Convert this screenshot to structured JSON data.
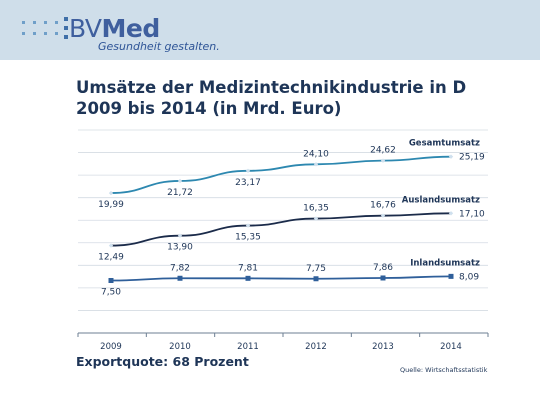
{
  "header": {
    "logo_main": "BV",
    "logo_bold": "Med",
    "tagline": "Gesundheit gestalten."
  },
  "title_line1": "Umsätze der Medizintechnikindustrie in D",
  "title_line2": "2009 bis 2014 (in Mrd. Euro)",
  "note": "Exportquote: 68 Prozent",
  "source": "Quelle: Wirtschaftsstatistik",
  "chart_data": {
    "type": "line",
    "x": [
      "2009",
      "2010",
      "2011",
      "2012",
      "2013",
      "2014"
    ],
    "ylim": [
      0,
      29
    ],
    "grid": true,
    "series": [
      {
        "name": "Gesamtumsatz",
        "values": [
          19.99,
          21.72,
          23.17,
          24.1,
          24.62,
          25.19
        ],
        "labels": [
          "19,99",
          "21,72",
          "23,17",
          "24,10",
          "24,62",
          "25,19"
        ],
        "color": "#2d88b0",
        "marker": "diamond"
      },
      {
        "name": "Auslandsumsatz",
        "values": [
          12.49,
          13.9,
          15.35,
          16.35,
          16.76,
          17.1
        ],
        "labels": [
          "12,49",
          "13,90",
          "15,35",
          "16,35",
          "16,76",
          "17,10"
        ],
        "color": "#1b2b4a",
        "marker": "diamond"
      },
      {
        "name": "Inlandsumsatz",
        "values": [
          7.5,
          7.82,
          7.81,
          7.75,
          7.86,
          8.09
        ],
        "labels": [
          "7,50",
          "7,82",
          "7,81",
          "7,75",
          "7,86",
          "8,09"
        ],
        "color": "#2f5f9a",
        "marker": "square"
      }
    ]
  }
}
